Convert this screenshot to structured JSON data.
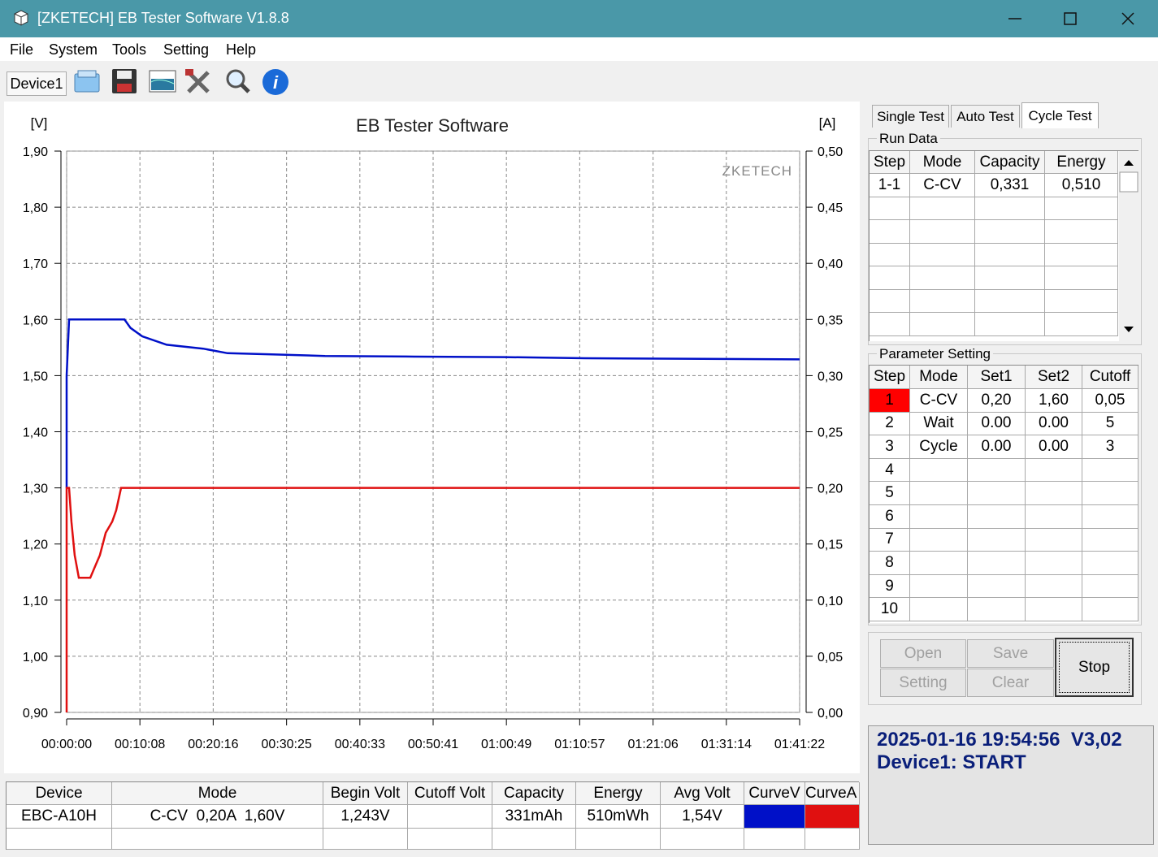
{
  "window": {
    "title": "[ZKETECH] EB Tester Software V1.8.8"
  },
  "menu": [
    "File",
    "System",
    "Tools",
    "Setting",
    "Help"
  ],
  "toolbar": {
    "device": "Device1"
  },
  "chart_data": {
    "type": "line",
    "title": "EB Tester Software",
    "y_label": "[V]",
    "y2_label": "[A]",
    "annotation": "ZKETECH",
    "grid": true,
    "x": [
      0,
      0,
      20,
      40,
      67,
      101,
      196,
      236,
      276,
      324,
      378,
      411,
      452,
      480,
      530,
      627,
      830,
      1133,
      1335,
      1672,
      2144,
      2818,
      3628,
      4302,
      6082
    ],
    "xlim": [
      0,
      6082
    ],
    "xticks": [
      {
        "value": 0,
        "label": "00:00:00"
      },
      {
        "value": 608,
        "label": "00:10:08"
      },
      {
        "value": 1216,
        "label": "00:20:16"
      },
      {
        "value": 1825,
        "label": "00:30:25"
      },
      {
        "value": 2433,
        "label": "00:40:33"
      },
      {
        "value": 3041,
        "label": "00:50:41"
      },
      {
        "value": 3649,
        "label": "01:00:49"
      },
      {
        "value": 4257,
        "label": "01:10:57"
      },
      {
        "value": 4866,
        "label": "01:21:06"
      },
      {
        "value": 5474,
        "label": "01:31:14"
      },
      {
        "value": 6082,
        "label": "01:41:22"
      }
    ],
    "ylim": [
      0.9,
      1.9
    ],
    "yticks": [
      {
        "value": 0.9,
        "label": "0,90"
      },
      {
        "value": 1.0,
        "label": "1,00"
      },
      {
        "value": 1.1,
        "label": "1,10"
      },
      {
        "value": 1.2,
        "label": "1,20"
      },
      {
        "value": 1.3,
        "label": "1,30"
      },
      {
        "value": 1.4,
        "label": "1,40"
      },
      {
        "value": 1.5,
        "label": "1,50"
      },
      {
        "value": 1.6,
        "label": "1,60"
      },
      {
        "value": 1.7,
        "label": "1,70"
      },
      {
        "value": 1.8,
        "label": "1,80"
      },
      {
        "value": 1.9,
        "label": "1,90"
      }
    ],
    "y2lim": [
      0,
      0.5
    ],
    "y2ticks": [
      {
        "value": 0,
        "label": "0,00"
      },
      {
        "value": 0.05,
        "label": "0,05"
      },
      {
        "value": 0.1,
        "label": "0,10"
      },
      {
        "value": 0.15,
        "label": "0,15"
      },
      {
        "value": 0.2,
        "label": "0,20"
      },
      {
        "value": 0.25,
        "label": "0,25"
      },
      {
        "value": 0.3,
        "label": "0,30"
      },
      {
        "value": 0.35,
        "label": "0,35"
      },
      {
        "value": 0.4,
        "label": "0,40"
      },
      {
        "value": 0.45,
        "label": "0,45"
      },
      {
        "value": 0.5,
        "label": "0,50"
      }
    ],
    "series": [
      {
        "color": "#0010c8",
        "values": [
          1.3,
          1.5,
          1.6,
          1.6,
          1.6,
          1.6,
          1.6,
          1.6,
          1.6,
          1.6,
          1.6,
          1.6,
          1.6,
          1.6,
          1.585,
          1.57,
          1.555,
          1.548,
          1.54,
          1.538,
          1.535,
          1.534,
          1.533,
          1.531,
          1.529
        ]
      },
      {
        "color": "#e01010",
        "axis": "y2",
        "values": [
          0,
          0.2,
          0.2,
          0.17,
          0.14,
          0.12,
          0.12,
          0.13,
          0.14,
          0.16,
          0.17,
          0.18,
          0.2,
          0.2,
          0.2,
          0.2,
          0.2,
          0.2,
          0.2,
          0.2,
          0.2,
          0.2,
          0.2,
          0.2,
          0.2
        ]
      }
    ]
  },
  "tabs": [
    "Single Test",
    "Auto Test",
    "Cycle Test"
  ],
  "run_data": {
    "title": "Run Data",
    "columns": [
      "Step",
      "Mode",
      "Capacity",
      "Energy"
    ],
    "rows": [
      [
        "1-1",
        "C-CV",
        "0,331",
        "0,510"
      ]
    ]
  },
  "parameter_setting": {
    "title": "Parameter Setting",
    "columns": [
      "Step",
      "Mode",
      "Set1",
      "Set2",
      "Cutoff"
    ],
    "rows": [
      [
        "1",
        "C-CV",
        "0,20",
        "1,60",
        "0,05"
      ],
      [
        "2",
        "Wait",
        "0.00",
        "0.00",
        "5"
      ],
      [
        "3",
        "Cycle",
        "0.00",
        "0.00",
        "3"
      ],
      [
        "4"
      ],
      [
        "5"
      ],
      [
        "6"
      ],
      [
        "7"
      ],
      [
        "8"
      ],
      [
        "9"
      ],
      [
        "10"
      ]
    ]
  },
  "buttons": {
    "open": "Open",
    "save": "Save",
    "setting": "Setting",
    "clear": "Clear",
    "stop": "Stop"
  },
  "status": [
    "2025-01-16 19:54:56  V3,02",
    "Device1: START"
  ],
  "summary": {
    "columns": [
      "Device",
      "Mode",
      "Begin Volt",
      "Cutoff Volt",
      "Capacity",
      "Energy",
      "Avg Volt",
      "CurveV",
      "CurveA"
    ],
    "rows": [
      [
        "EBC-A10H",
        "C-CV  0,20A  1,60V",
        "1,243V",
        null,
        "331mAh",
        "510mWh",
        "1,54V"
      ]
    ]
  }
}
